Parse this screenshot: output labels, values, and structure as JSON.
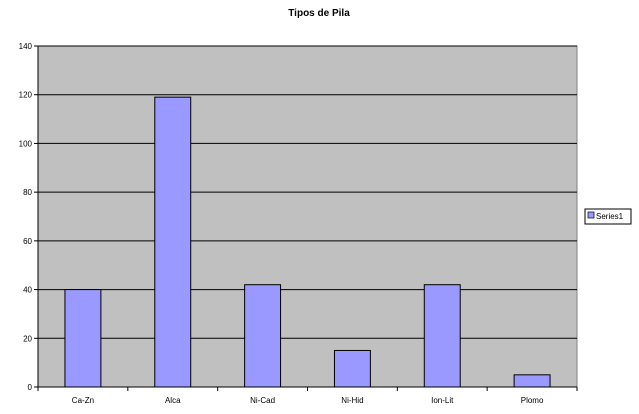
{
  "chart_data": {
    "type": "bar",
    "title": "Tipos de Pila",
    "categories": [
      "Ca-Zn",
      "Alca",
      "Ni-Cad",
      "Ni-Hid",
      "Ion-Lit",
      "Plomo"
    ],
    "series": [
      {
        "name": "Series1",
        "values": [
          40,
          119,
          42,
          15,
          42,
          5
        ]
      }
    ],
    "xlabel": "",
    "ylabel": "",
    "ylim": [
      0,
      140
    ],
    "y_ticks": [
      "0",
      "20",
      "40",
      "60",
      "80",
      "100",
      "120",
      "140"
    ],
    "grid": true,
    "legend_position": "right",
    "colors": {
      "bar_fill": "#9999ff",
      "plot_background": "#c0c0c0",
      "grid": "#000000"
    }
  }
}
